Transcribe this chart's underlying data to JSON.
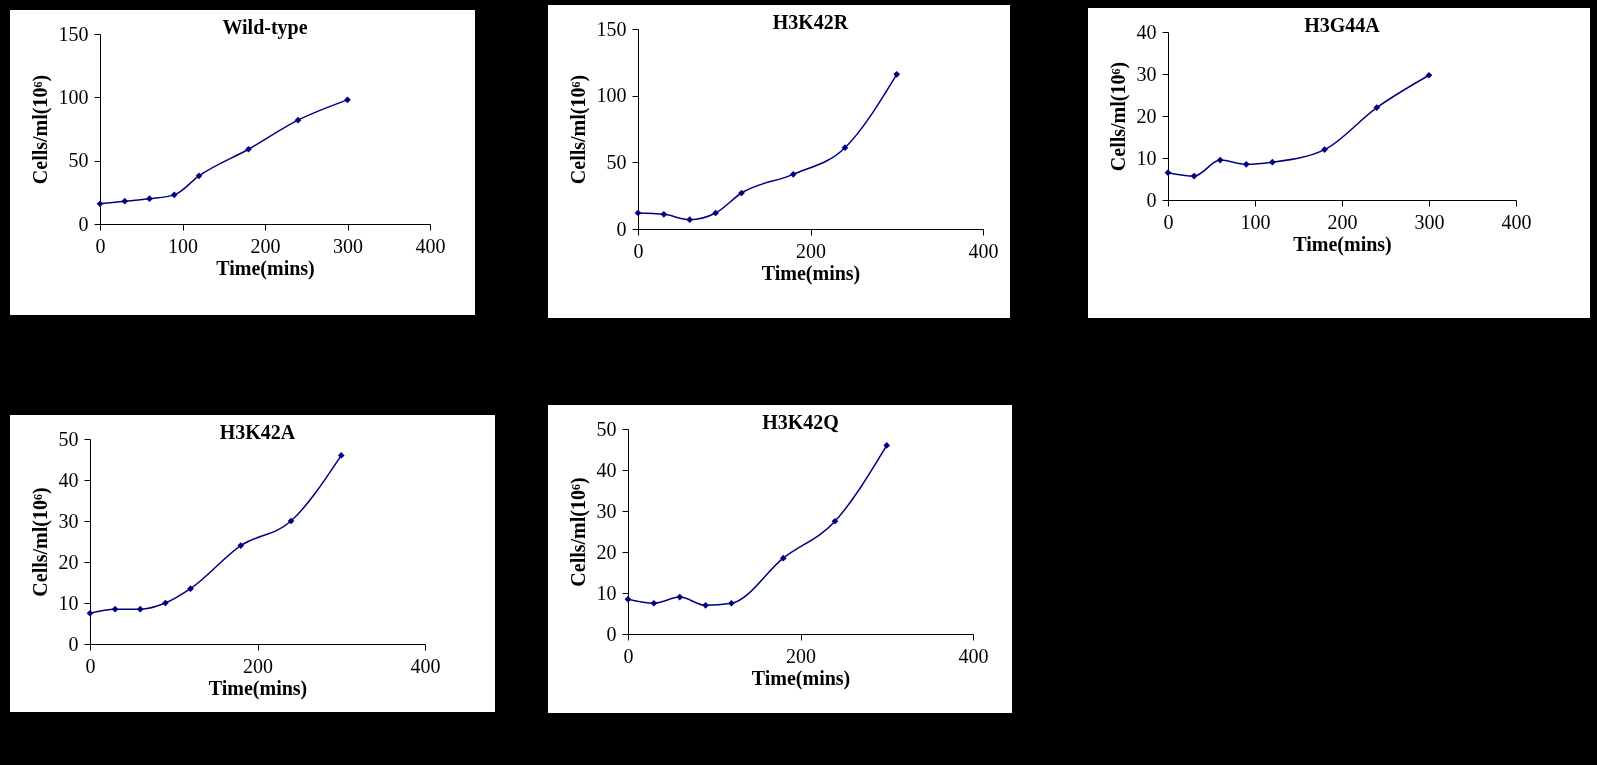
{
  "chart_data": [
    {
      "type": "line",
      "title": "Wild-type",
      "xlabel": "Time(mins)",
      "ylabel": "Cells/ml(10⁶)",
      "x": [
        0,
        30,
        60,
        90,
        120,
        180,
        240,
        300
      ],
      "values": [
        16,
        18,
        20,
        23,
        38,
        59,
        82,
        98
      ],
      "color": "#000080",
      "marker": "diamond",
      "xlim": [
        0,
        400
      ],
      "xticks": [
        0,
        100,
        200,
        300,
        400
      ],
      "ylim": [
        0,
        150
      ],
      "yticks": [
        0,
        50,
        100,
        150
      ]
    },
    {
      "type": "line",
      "title": "H3K42R",
      "xlabel": "Time(mins)",
      "ylabel": "Cells/ml(10⁶)",
      "x": [
        0,
        30,
        60,
        90,
        120,
        180,
        240,
        300
      ],
      "values": [
        12,
        11,
        7,
        12,
        27,
        41,
        61,
        116
      ],
      "color": "#000080",
      "marker": "diamond",
      "xlim": [
        0,
        400
      ],
      "xticks": [
        0,
        200,
        400
      ],
      "ylim": [
        0,
        150
      ],
      "yticks": [
        0,
        50,
        100,
        150
      ]
    },
    {
      "type": "line",
      "title": "H3G44A",
      "xlabel": "Time(mins)",
      "ylabel": "Cells/ml(10⁶)",
      "x": [
        0,
        30,
        60,
        90,
        120,
        180,
        240,
        300
      ],
      "values": [
        6.5,
        5.7,
        9.5,
        8.5,
        9,
        12,
        22,
        29.7
      ],
      "color": "#000080",
      "marker": "diamond",
      "xlim": [
        0,
        400
      ],
      "xticks": [
        0,
        100,
        200,
        300,
        400
      ],
      "ylim": [
        0,
        40
      ],
      "yticks": [
        0,
        10,
        20,
        30,
        40
      ]
    },
    {
      "type": "line",
      "title": "H3K42A",
      "xlabel": "Time(mins)",
      "ylabel": "Cells/ml(10⁶)",
      "x": [
        0,
        30,
        60,
        90,
        120,
        180,
        240,
        300
      ],
      "values": [
        7.5,
        8.5,
        8.5,
        10,
        13.5,
        24,
        30,
        46
      ],
      "color": "#000080",
      "marker": "diamond",
      "xlim": [
        0,
        400
      ],
      "xticks": [
        0,
        200,
        400
      ],
      "ylim": [
        0,
        50
      ],
      "yticks": [
        0,
        10,
        20,
        30,
        40,
        50
      ]
    },
    {
      "type": "line",
      "title": "H3K42Q",
      "xlabel": "Time(mins)",
      "ylabel": "Cells/ml(10⁶)",
      "x": [
        0,
        30,
        60,
        90,
        120,
        180,
        240,
        300
      ],
      "values": [
        8.5,
        7.5,
        9,
        7,
        7.5,
        18.5,
        27.5,
        46
      ],
      "color": "#000080",
      "marker": "diamond",
      "xlim": [
        0,
        400
      ],
      "xticks": [
        0,
        200,
        400
      ],
      "ylim": [
        0,
        50
      ],
      "yticks": [
        0,
        10,
        20,
        30,
        40,
        50
      ]
    }
  ]
}
